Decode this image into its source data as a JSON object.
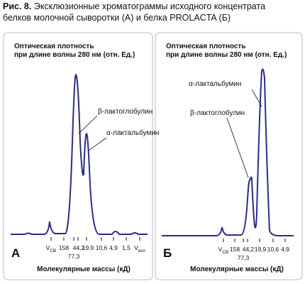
{
  "caption": {
    "label": "Рис. 8.",
    "line1": "Эксклюзионные хроматограммы исходного концентрата",
    "line2": "белков молочной сыворотки (А) и белка PROLACTA (Б)"
  },
  "panels": [
    {
      "letter": "А",
      "ylabel": [
        "Оптическая плотность",
        "при длине волны 280 нм (отн. Ед.)"
      ],
      "peaks": [
        "β-лактоглобулин",
        "α-лактальбумин"
      ],
      "ticks": {
        "v_main": "V",
        "v_sub": "СВ",
        "labels": [
          "158",
          "44,2",
          "19,9",
          "10,6",
          "4,9",
          "1,5"
        ],
        "below": "77,3",
        "end_main": "V",
        "end_sub": "кол"
      },
      "xlabel": "Молекулярные массы (кД)"
    },
    {
      "letter": "Б",
      "ylabel": [
        "Оптическая плотность",
        "при длине волны 280 нм (отн. Ед.)"
      ],
      "peaks": [
        "α-лактальбумин",
        "β-лактоглобулин"
      ],
      "ticks": {
        "v_main": "V",
        "v_sub": "СВ",
        "labels": [
          "158",
          "44,2",
          "19,9",
          "10,6",
          "4,9"
        ],
        "below": "77,3"
      },
      "xlabel": "Молекулярные массы (кД)"
    }
  ]
}
